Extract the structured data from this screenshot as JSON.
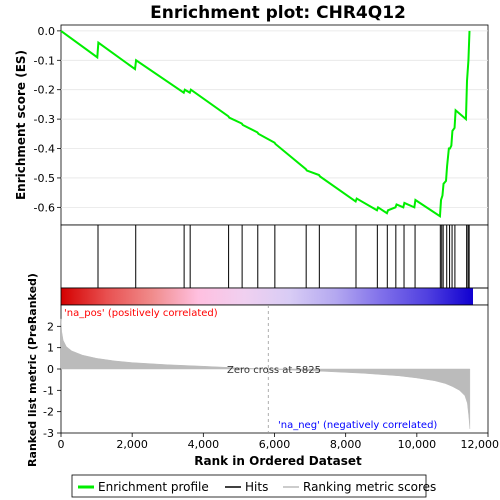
{
  "chart_data": [
    {
      "type": "line",
      "title": "Enrichment plot: CHR4Q12",
      "ylabel": "Enrichment score (ES)",
      "xlim": [
        0,
        11500
      ],
      "ylim": [
        -0.66,
        0.02
      ],
      "yticks": [
        0.0,
        -0.1,
        -0.2,
        -0.3,
        -0.4,
        -0.5,
        -0.6
      ],
      "ytick_labels": [
        "0.0",
        "-0.1",
        "-0.2",
        "-0.3",
        "-0.4",
        "-0.5",
        "-0.6"
      ],
      "series": [
        {
          "name": "Enrichment profile",
          "color": "#00ee00",
          "x": [
            0,
            1020,
            1050,
            2080,
            2110,
            3450,
            3480,
            3620,
            3650,
            4700,
            4730,
            5080,
            5110,
            5520,
            5550,
            6000,
            6030,
            6880,
            6910,
            7250,
            7280,
            8280,
            8310,
            8880,
            8910,
            9160,
            9190,
            9400,
            9430,
            9620,
            9650,
            9930,
            9960,
            10650,
            10680,
            10720,
            10750,
            10820,
            10850,
            10900,
            10930,
            10970,
            11000,
            11060,
            11090,
            11380,
            11410,
            11450,
            11480
          ],
          "y": [
            0.0,
            -0.09,
            -0.04,
            -0.13,
            -0.1,
            -0.21,
            -0.2,
            -0.21,
            -0.2,
            -0.29,
            -0.295,
            -0.315,
            -0.32,
            -0.345,
            -0.35,
            -0.38,
            -0.385,
            -0.47,
            -0.475,
            -0.49,
            -0.495,
            -0.58,
            -0.57,
            -0.61,
            -0.6,
            -0.62,
            -0.61,
            -0.6,
            -0.59,
            -0.6,
            -0.585,
            -0.6,
            -0.575,
            -0.63,
            -0.575,
            -0.56,
            -0.52,
            -0.51,
            -0.46,
            -0.4,
            -0.4,
            -0.39,
            -0.34,
            -0.33,
            -0.27,
            -0.3,
            -0.17,
            -0.1,
            0.0
          ]
        }
      ],
      "hits_label": "Hits",
      "hits_x": [
        1040,
        2100,
        3460,
        3630,
        4710,
        5090,
        5530,
        6010,
        6890,
        7260,
        8290,
        8890,
        9170,
        9410,
        9640,
        9950,
        10660,
        10700,
        10740,
        10840,
        10920,
        10990,
        11070,
        11400,
        11440,
        11470
      ]
    },
    {
      "type": "area",
      "ylabel": "Ranked list metric (PreRanked)",
      "xlabel": "Rank in Ordered Dataset",
      "xlim": [
        0,
        11500
      ],
      "ylim": [
        -3,
        3
      ],
      "yticks": [
        2,
        1,
        0,
        -1,
        -2,
        -3
      ],
      "ytick_labels": [
        "2",
        "1",
        "0",
        "-1",
        "-2",
        "-3"
      ],
      "xticks": [
        0,
        2000,
        4000,
        6000,
        8000,
        10000,
        12000
      ],
      "xtick_labels": [
        "0",
        "2,000",
        "4,000",
        "6,000",
        "8,000",
        "10,000",
        "12,000"
      ],
      "series": [
        {
          "name": "Ranking metric scores",
          "color": "#bbbbbb",
          "x": [
            0,
            20,
            60,
            150,
            300,
            600,
            1000,
            1500,
            2000,
            3000,
            4000,
            5000,
            5825,
            6500,
            7500,
            8500,
            9500,
            10000,
            10500,
            10800,
            11000,
            11200,
            11350,
            11420,
            11460,
            11490
          ],
          "y": [
            2.35,
            1.75,
            1.35,
            1.05,
            0.85,
            0.65,
            0.5,
            0.38,
            0.3,
            0.2,
            0.13,
            0.05,
            0.0,
            -0.05,
            -0.12,
            -0.2,
            -0.32,
            -0.42,
            -0.55,
            -0.68,
            -0.82,
            -1.0,
            -1.25,
            -1.6,
            -2.2,
            -2.8
          ]
        }
      ],
      "annotations": {
        "zero_cross": "Zero cross at 5825",
        "zero_cross_x": 5825,
        "positive": "'na_pos' (positively correlated)",
        "negative": "'na_neg' (negatively correlated)"
      }
    }
  ],
  "colors": {
    "profile": "#00ee00",
    "metric_fill": "#bbbbbb",
    "positive_label": "#ff0000",
    "negative_label": "#0000ff",
    "heat_stops": [
      "#d40000",
      "#e85050",
      "#f08c8c",
      "#ffc0e0",
      "#f0d0f0",
      "#d8ccf5",
      "#b4a8f0",
      "#8070ea",
      "#5040e0",
      "#1000d0"
    ]
  },
  "legend": {
    "items": [
      {
        "label": "Enrichment profile",
        "color": "#00ee00"
      },
      {
        "label": "Hits",
        "color": "#000000"
      },
      {
        "label": "Ranking metric scores",
        "color": "#bbbbbb"
      }
    ]
  }
}
